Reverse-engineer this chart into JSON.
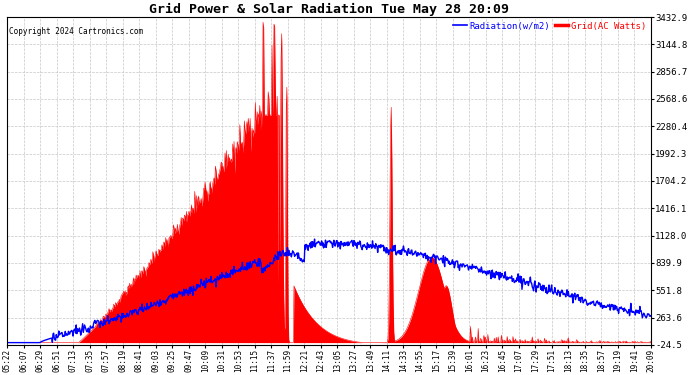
{
  "title": "Grid Power & Solar Radiation Tue May 28 20:09",
  "copyright": "Copyright 2024 Cartronics.com",
  "legend_radiation": "Radiation(w/m2)",
  "legend_grid": "Grid(AC Watts)",
  "yticks": [
    3432.9,
    3144.8,
    2856.7,
    2568.6,
    2280.4,
    1992.3,
    1704.2,
    1416.1,
    1128.0,
    839.9,
    551.8,
    263.6,
    -24.5
  ],
  "ymin": -24.5,
  "ymax": 3432.9,
  "bg_color": "#ffffff",
  "plot_bg_color": "#ffffff",
  "grid_color": "#c8c8c8",
  "fill_color": "#ff0000",
  "radiation_color": "#0000ff",
  "grid_line_color": "#ff0000",
  "title_color": "#000000",
  "copyright_color": "#000000",
  "xtick_labels": [
    "05:22",
    "06:07",
    "06:29",
    "06:51",
    "07:13",
    "07:35",
    "07:57",
    "08:19",
    "08:41",
    "09:03",
    "09:25",
    "09:47",
    "10:09",
    "10:31",
    "10:53",
    "11:15",
    "11:37",
    "11:59",
    "12:21",
    "12:43",
    "13:05",
    "13:27",
    "13:49",
    "14:11",
    "14:33",
    "14:55",
    "15:17",
    "15:39",
    "16:01",
    "16:23",
    "16:45",
    "17:07",
    "17:29",
    "17:51",
    "18:13",
    "18:35",
    "18:57",
    "19:19",
    "19:41",
    "20:09"
  ]
}
